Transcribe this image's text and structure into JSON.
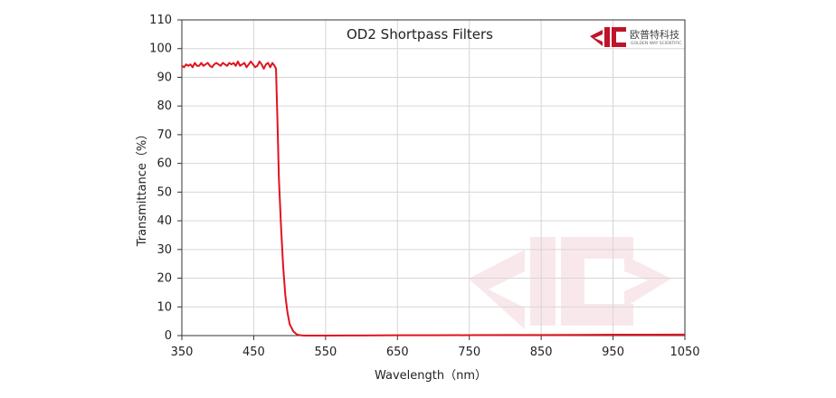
{
  "chart_data": {
    "type": "line",
    "title": "OD2  Shortpass Filters",
    "xlabel": "Wavelength（nm）",
    "ylabel": "Transmittance（%）",
    "xlim": [
      350,
      1050
    ],
    "ylim": [
      0,
      110
    ],
    "xticks": [
      350,
      450,
      550,
      650,
      750,
      850,
      950,
      1050
    ],
    "yticks": [
      0,
      10,
      20,
      30,
      40,
      50,
      60,
      70,
      80,
      90,
      100,
      110
    ],
    "grid": true,
    "line_color": "#e0141e",
    "series": [
      {
        "x": [
          350,
          353,
          356,
          359,
          362,
          365,
          368,
          371,
          374,
          377,
          380,
          383,
          386,
          389,
          392,
          395,
          398,
          401,
          404,
          407,
          410,
          413,
          416,
          419,
          422,
          425,
          428,
          431,
          434,
          437,
          440,
          443,
          446,
          449,
          452,
          455,
          458,
          461,
          464,
          467,
          470,
          473,
          476,
          479,
          481,
          483,
          485,
          488,
          491,
          494,
          497,
          500,
          505,
          510,
          515,
          520,
          530,
          550,
          600,
          650,
          700,
          750,
          800,
          850,
          900,
          950,
          1000,
          1050
        ],
        "y": [
          94,
          93.5,
          94.5,
          94,
          94.5,
          93.5,
          95,
          94,
          94,
          95,
          94,
          94.5,
          95,
          94,
          93.5,
          94.5,
          95,
          94.5,
          94,
          95,
          94.5,
          94,
          95,
          94.5,
          95,
          94,
          95.5,
          94,
          94.5,
          95,
          93.5,
          94.5,
          95.5,
          94.5,
          93.5,
          94,
          95.5,
          94.5,
          93,
          94.5,
          95,
          93.5,
          95,
          94,
          93,
          75,
          55,
          38,
          24,
          14,
          8,
          4,
          1.5,
          0.4,
          0.1,
          0,
          0,
          0,
          0.05,
          0.1,
          0.1,
          0.15,
          0.2,
          0.2,
          0.25,
          0.3,
          0.3,
          0.35
        ]
      }
    ]
  }
}
